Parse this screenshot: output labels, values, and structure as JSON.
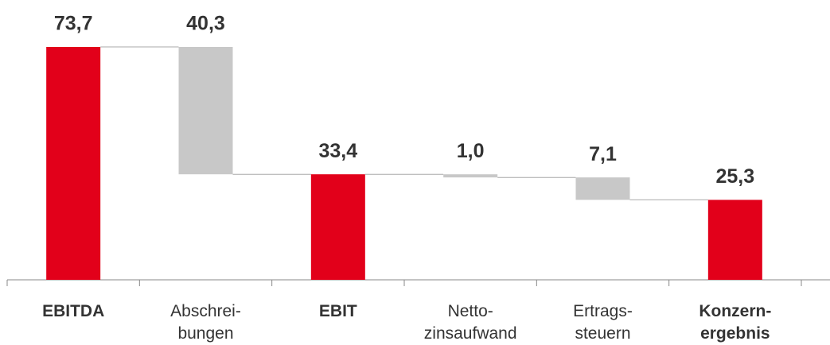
{
  "chart_data": {
    "type": "waterfall",
    "categories": [
      "EBITDA",
      "Abschrei-\nbungen",
      "EBIT",
      "Netto-\nzinsaufwand",
      "Ertrags-\nsteuern",
      "Konzern-\nergebnis"
    ],
    "values": [
      73.7,
      40.3,
      33.4,
      1.0,
      7.1,
      25.3
    ],
    "value_labels": [
      "73,7",
      "40,3",
      "33,4",
      "1,0",
      "7,1",
      "25,3"
    ],
    "measures": [
      "total",
      "decrease",
      "total",
      "decrease",
      "decrease",
      "total"
    ],
    "colors": {
      "total": "#e2001a",
      "decrease": "#c8c8c8"
    }
  }
}
